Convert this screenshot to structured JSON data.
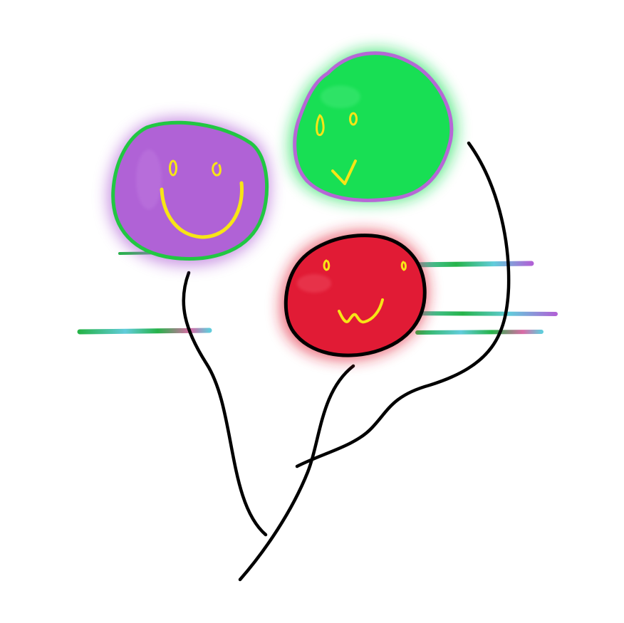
{
  "palette": {
    "background": "#ffffff",
    "purple": "#b062d6",
    "purple_border_green": "#21c742",
    "green": "#18df54",
    "green_border_purple": "#b667d6",
    "red": "#e11b35",
    "black": "#000000",
    "yellow": "#f7e516",
    "cyan": "#61ccdb",
    "pink": "#da6aa6",
    "grass": "#26b349"
  },
  "elements": {
    "balloons": [
      {
        "name": "purple-smiley-balloon",
        "face": "smile"
      },
      {
        "name": "green-smiley-balloon",
        "face": "check-smile"
      },
      {
        "name": "red-smiley-balloon",
        "face": "small-smile"
      }
    ]
  }
}
